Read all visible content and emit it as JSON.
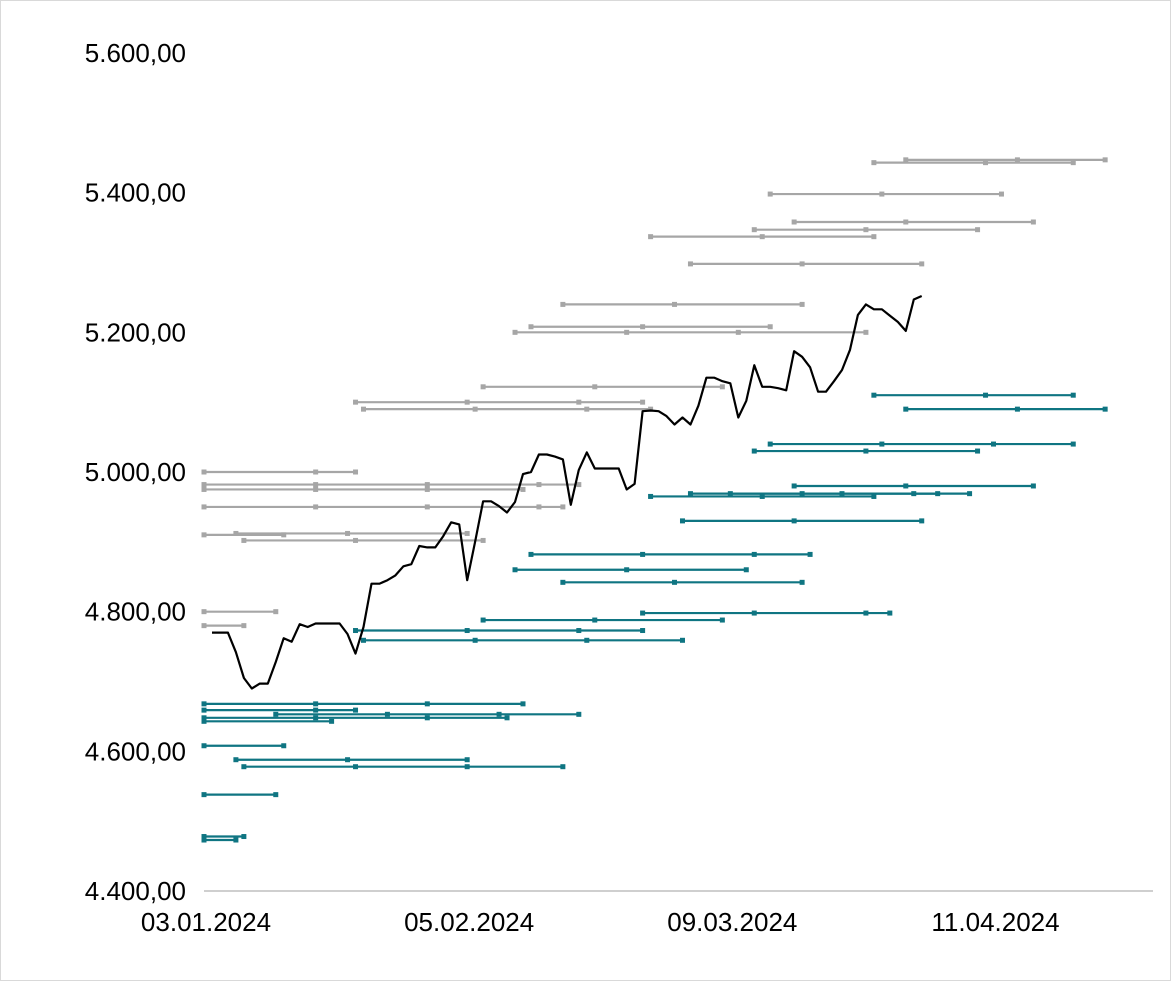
{
  "chart_data": {
    "type": "line",
    "title": "",
    "xlabel": "",
    "ylabel": "",
    "x_range": [
      "2024-01-03",
      "2024-05-01"
    ],
    "ylim": [
      4400,
      5600
    ],
    "y_ticks": [
      4400,
      4600,
      4800,
      5000,
      5200,
      5400,
      5600
    ],
    "y_tick_labels": [
      "4.400,00",
      "4.600,00",
      "4.800,00",
      "5.000,00",
      "5.200,00",
      "5.400,00",
      "5.600,00"
    ],
    "x_ticks": [
      "2024-01-03",
      "2024-02-05",
      "2024-03-09",
      "2024-04-11"
    ],
    "x_tick_labels": [
      "03.01.2024",
      "05.02.2024",
      "09.03.2024",
      "11.04.2024"
    ],
    "grid": false,
    "legend": "none",
    "colors": {
      "price": "#000000",
      "upper_ranges": "#a6a6a6",
      "lower_ranges": "#0f7582",
      "axis": "#bfbfbf"
    },
    "series": [
      {
        "values": [
          [
            "2024-01-04",
            4770
          ],
          [
            "2024-01-05",
            4770
          ],
          [
            "2024-01-06",
            4770
          ],
          [
            "2024-01-07",
            4742
          ],
          [
            "2024-01-08",
            4705
          ],
          [
            "2024-01-09",
            4690
          ],
          [
            "2024-01-10",
            4697
          ],
          [
            "2024-01-11",
            4697
          ],
          [
            "2024-01-12",
            4728
          ],
          [
            "2024-01-13",
            4762
          ],
          [
            "2024-01-14",
            4757
          ],
          [
            "2024-01-15",
            4782
          ],
          [
            "2024-01-16",
            4778
          ],
          [
            "2024-01-17",
            4783
          ],
          [
            "2024-01-18",
            4783
          ],
          [
            "2024-01-19",
            4783
          ],
          [
            "2024-01-20",
            4783
          ],
          [
            "2024-01-21",
            4768
          ],
          [
            "2024-01-22",
            4740
          ],
          [
            "2024-01-23",
            4778
          ],
          [
            "2024-01-24",
            4840
          ],
          [
            "2024-01-25",
            4840
          ],
          [
            "2024-01-26",
            4845
          ],
          [
            "2024-01-27",
            4852
          ],
          [
            "2024-01-28",
            4865
          ],
          [
            "2024-01-29",
            4868
          ],
          [
            "2024-01-30",
            4894
          ],
          [
            "2024-01-31",
            4892
          ],
          [
            "2024-02-01",
            4892
          ],
          [
            "2024-02-02",
            4908
          ],
          [
            "2024-02-03",
            4928
          ],
          [
            "2024-02-04",
            4925
          ],
          [
            "2024-02-05",
            4845
          ],
          [
            "2024-02-06",
            4900
          ],
          [
            "2024-02-07",
            4958
          ],
          [
            "2024-02-08",
            4958
          ],
          [
            "2024-02-09",
            4951
          ],
          [
            "2024-02-10",
            4942
          ],
          [
            "2024-02-11",
            4957
          ],
          [
            "2024-02-12",
            4997
          ],
          [
            "2024-02-13",
            5000
          ],
          [
            "2024-02-14",
            5025
          ],
          [
            "2024-02-15",
            5025
          ],
          [
            "2024-02-16",
            5022
          ],
          [
            "2024-02-17",
            5018
          ],
          [
            "2024-02-18",
            4953
          ],
          [
            "2024-02-19",
            5003
          ],
          [
            "2024-02-20",
            5028
          ],
          [
            "2024-02-21",
            5005
          ],
          [
            "2024-02-22",
            5005
          ],
          [
            "2024-02-23",
            5005
          ],
          [
            "2024-02-24",
            5005
          ],
          [
            "2024-02-25",
            4975
          ],
          [
            "2024-02-26",
            4983
          ],
          [
            "2024-02-27",
            5087
          ],
          [
            "2024-02-28",
            5088
          ],
          [
            "2024-02-29",
            5087
          ],
          [
            "2024-03-01",
            5080
          ],
          [
            "2024-03-02",
            5068
          ],
          [
            "2024-03-03",
            5078
          ],
          [
            "2024-03-04",
            5068
          ],
          [
            "2024-03-05",
            5095
          ],
          [
            "2024-03-06",
            5135
          ],
          [
            "2024-03-07",
            5135
          ],
          [
            "2024-03-08",
            5130
          ],
          [
            "2024-03-09",
            5127
          ],
          [
            "2024-03-10",
            5078
          ],
          [
            "2024-03-11",
            5102
          ],
          [
            "2024-03-12",
            5153
          ],
          [
            "2024-03-13",
            5122
          ],
          [
            "2024-03-14",
            5122
          ],
          [
            "2024-03-15",
            5120
          ],
          [
            "2024-03-16",
            5117
          ],
          [
            "2024-03-17",
            5173
          ],
          [
            "2024-03-18",
            5165
          ],
          [
            "2024-03-19",
            5150
          ],
          [
            "2024-03-20",
            5115
          ],
          [
            "2024-03-21",
            5115
          ],
          [
            "2024-03-22",
            5130
          ],
          [
            "2024-03-23",
            5146
          ],
          [
            "2024-03-24",
            5175
          ],
          [
            "2024-03-25",
            5225
          ],
          [
            "2024-03-26",
            5240
          ],
          [
            "2024-03-27",
            5233
          ],
          [
            "2024-03-28",
            5233
          ],
          [
            "2024-03-29",
            5224
          ],
          [
            "2024-03-30",
            5215
          ],
          [
            "2024-03-31",
            5202
          ],
          [
            "2024-04-01",
            5247
          ],
          [
            "2024-04-02",
            5252
          ]
        ]
      }
    ],
    "ranges_upper": [
      {
        "start": "2024-01-03",
        "end": "2024-01-22",
        "value": 5000
      },
      {
        "start": "2024-01-03",
        "end": "2024-02-12",
        "value": 4975
      },
      {
        "start": "2024-01-03",
        "end": "2024-02-19",
        "value": 4982
      },
      {
        "start": "2024-01-03",
        "end": "2024-02-17",
        "value": 4950
      },
      {
        "start": "2024-01-03",
        "end": "2024-01-13",
        "value": 4910
      },
      {
        "start": "2024-01-07",
        "end": "2024-02-05",
        "value": 4912
      },
      {
        "start": "2024-01-08",
        "end": "2024-02-07",
        "value": 4902
      },
      {
        "start": "2024-01-03",
        "end": "2024-01-12",
        "value": 4800
      },
      {
        "start": "2024-01-03",
        "end": "2024-01-08",
        "value": 4780
      },
      {
        "start": "2024-01-22",
        "end": "2024-02-27",
        "value": 5100
      },
      {
        "start": "2024-01-23",
        "end": "2024-02-28",
        "value": 5090
      },
      {
        "start": "2024-02-07",
        "end": "2024-03-08",
        "value": 5122
      },
      {
        "start": "2024-02-11",
        "end": "2024-03-26",
        "value": 5200
      },
      {
        "start": "2024-02-13",
        "end": "2024-03-14",
        "value": 5208
      },
      {
        "start": "2024-02-17",
        "end": "2024-03-18",
        "value": 5240
      },
      {
        "start": "2024-02-28",
        "end": "2024-03-27",
        "value": 5337
      },
      {
        "start": "2024-03-04",
        "end": "2024-04-02",
        "value": 5298
      },
      {
        "start": "2024-03-12",
        "end": "2024-04-09",
        "value": 5347
      },
      {
        "start": "2024-03-17",
        "end": "2024-04-16",
        "value": 5358
      },
      {
        "start": "2024-03-14",
        "end": "2024-04-12",
        "value": 5398
      },
      {
        "start": "2024-03-27",
        "end": "2024-04-21",
        "value": 5443
      },
      {
        "start": "2024-03-31",
        "end": "2024-04-25",
        "value": 5447
      }
    ],
    "ranges_lower": [
      {
        "start": "2024-01-03",
        "end": "2024-02-12",
        "value": 4668
      },
      {
        "start": "2024-01-03",
        "end": "2024-01-22",
        "value": 4659
      },
      {
        "start": "2024-01-03",
        "end": "2024-02-10",
        "value": 4648
      },
      {
        "start": "2024-01-03",
        "end": "2024-01-19",
        "value": 4643
      },
      {
        "start": "2024-01-12",
        "end": "2024-02-19",
        "value": 4653
      },
      {
        "start": "2024-01-03",
        "end": "2024-01-13",
        "value": 4608
      },
      {
        "start": "2024-01-07",
        "end": "2024-02-05",
        "value": 4588
      },
      {
        "start": "2024-01-08",
        "end": "2024-02-17",
        "value": 4578
      },
      {
        "start": "2024-01-03",
        "end": "2024-01-12",
        "value": 4538
      },
      {
        "start": "2024-01-03",
        "end": "2024-01-08",
        "value": 4478
      },
      {
        "start": "2024-01-03",
        "end": "2024-01-07",
        "value": 4473
      },
      {
        "start": "2024-01-22",
        "end": "2024-02-27",
        "value": 4773
      },
      {
        "start": "2024-01-23",
        "end": "2024-03-03",
        "value": 4759
      },
      {
        "start": "2024-02-07",
        "end": "2024-03-08",
        "value": 4788
      },
      {
        "start": "2024-02-13",
        "end": "2024-03-19",
        "value": 4882
      },
      {
        "start": "2024-02-11",
        "end": "2024-03-11",
        "value": 4860
      },
      {
        "start": "2024-02-17",
        "end": "2024-03-18",
        "value": 4842
      },
      {
        "start": "2024-02-27",
        "end": "2024-03-29",
        "value": 4798
      },
      {
        "start": "2024-02-28",
        "end": "2024-03-27",
        "value": 4965
      },
      {
        "start": "2024-03-04",
        "end": "2024-04-04",
        "value": 4969
      },
      {
        "start": "2024-03-09",
        "end": "2024-04-08",
        "value": 4969
      },
      {
        "start": "2024-03-17",
        "end": "2024-04-16",
        "value": 4980
      },
      {
        "start": "2024-03-03",
        "end": "2024-04-02",
        "value": 4930
      },
      {
        "start": "2024-03-12",
        "end": "2024-04-09",
        "value": 5030
      },
      {
        "start": "2024-03-14",
        "end": "2024-04-21",
        "value": 5040
      },
      {
        "start": "2024-03-27",
        "end": "2024-04-21",
        "value": 5110
      },
      {
        "start": "2024-03-31",
        "end": "2024-04-25",
        "value": 5090
      }
    ]
  }
}
